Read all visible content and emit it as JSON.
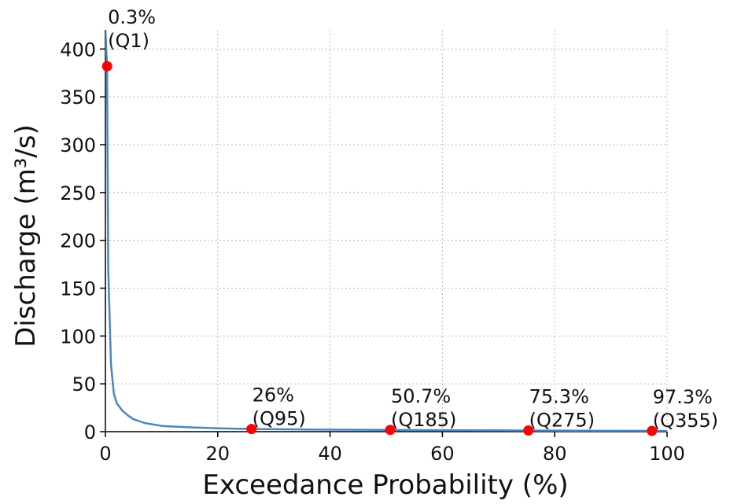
{
  "chart_data": {
    "type": "line",
    "title": "",
    "xlabel": "Exceedance Probability (%)",
    "ylabel": "Discharge (m³/s)",
    "xlim": [
      0,
      100
    ],
    "ylim": [
      0,
      420
    ],
    "x_ticks": [
      0,
      20,
      40,
      60,
      80,
      100
    ],
    "y_ticks": [
      0,
      50,
      100,
      150,
      200,
      250,
      300,
      350,
      400
    ],
    "grid": true,
    "colors": {
      "line": "#4a86c0",
      "marker": "#ff0000"
    },
    "series": [
      {
        "x": [
          0,
          0.3,
          0.5,
          1,
          1.5,
          2,
          3,
          4,
          5,
          7,
          10,
          15,
          20,
          26,
          35,
          50.7,
          60,
          75.3,
          85,
          97.3,
          100
        ],
        "y": [
          420,
          382,
          170,
          70,
          40,
          30,
          22,
          17,
          13,
          9,
          6,
          4.5,
          3.5,
          2.8,
          2.3,
          1.8,
          1.5,
          1.2,
          1.0,
          0.8,
          0.7
        ]
      }
    ],
    "highlighted_points": [
      {
        "x": 0.3,
        "y": 382,
        "label_pct": "0.3%",
        "label_q": "(Q1)"
      },
      {
        "x": 26,
        "y": 2.8,
        "label_pct": "26%",
        "label_q": "(Q95)"
      },
      {
        "x": 50.7,
        "y": 1.8,
        "label_pct": "50.7%",
        "label_q": "(Q185)"
      },
      {
        "x": 75.3,
        "y": 1.2,
        "label_pct": "75.3%",
        "label_q": "(Q275)"
      },
      {
        "x": 97.3,
        "y": 0.8,
        "label_pct": "97.3%",
        "label_q": "(Q355)"
      }
    ]
  }
}
